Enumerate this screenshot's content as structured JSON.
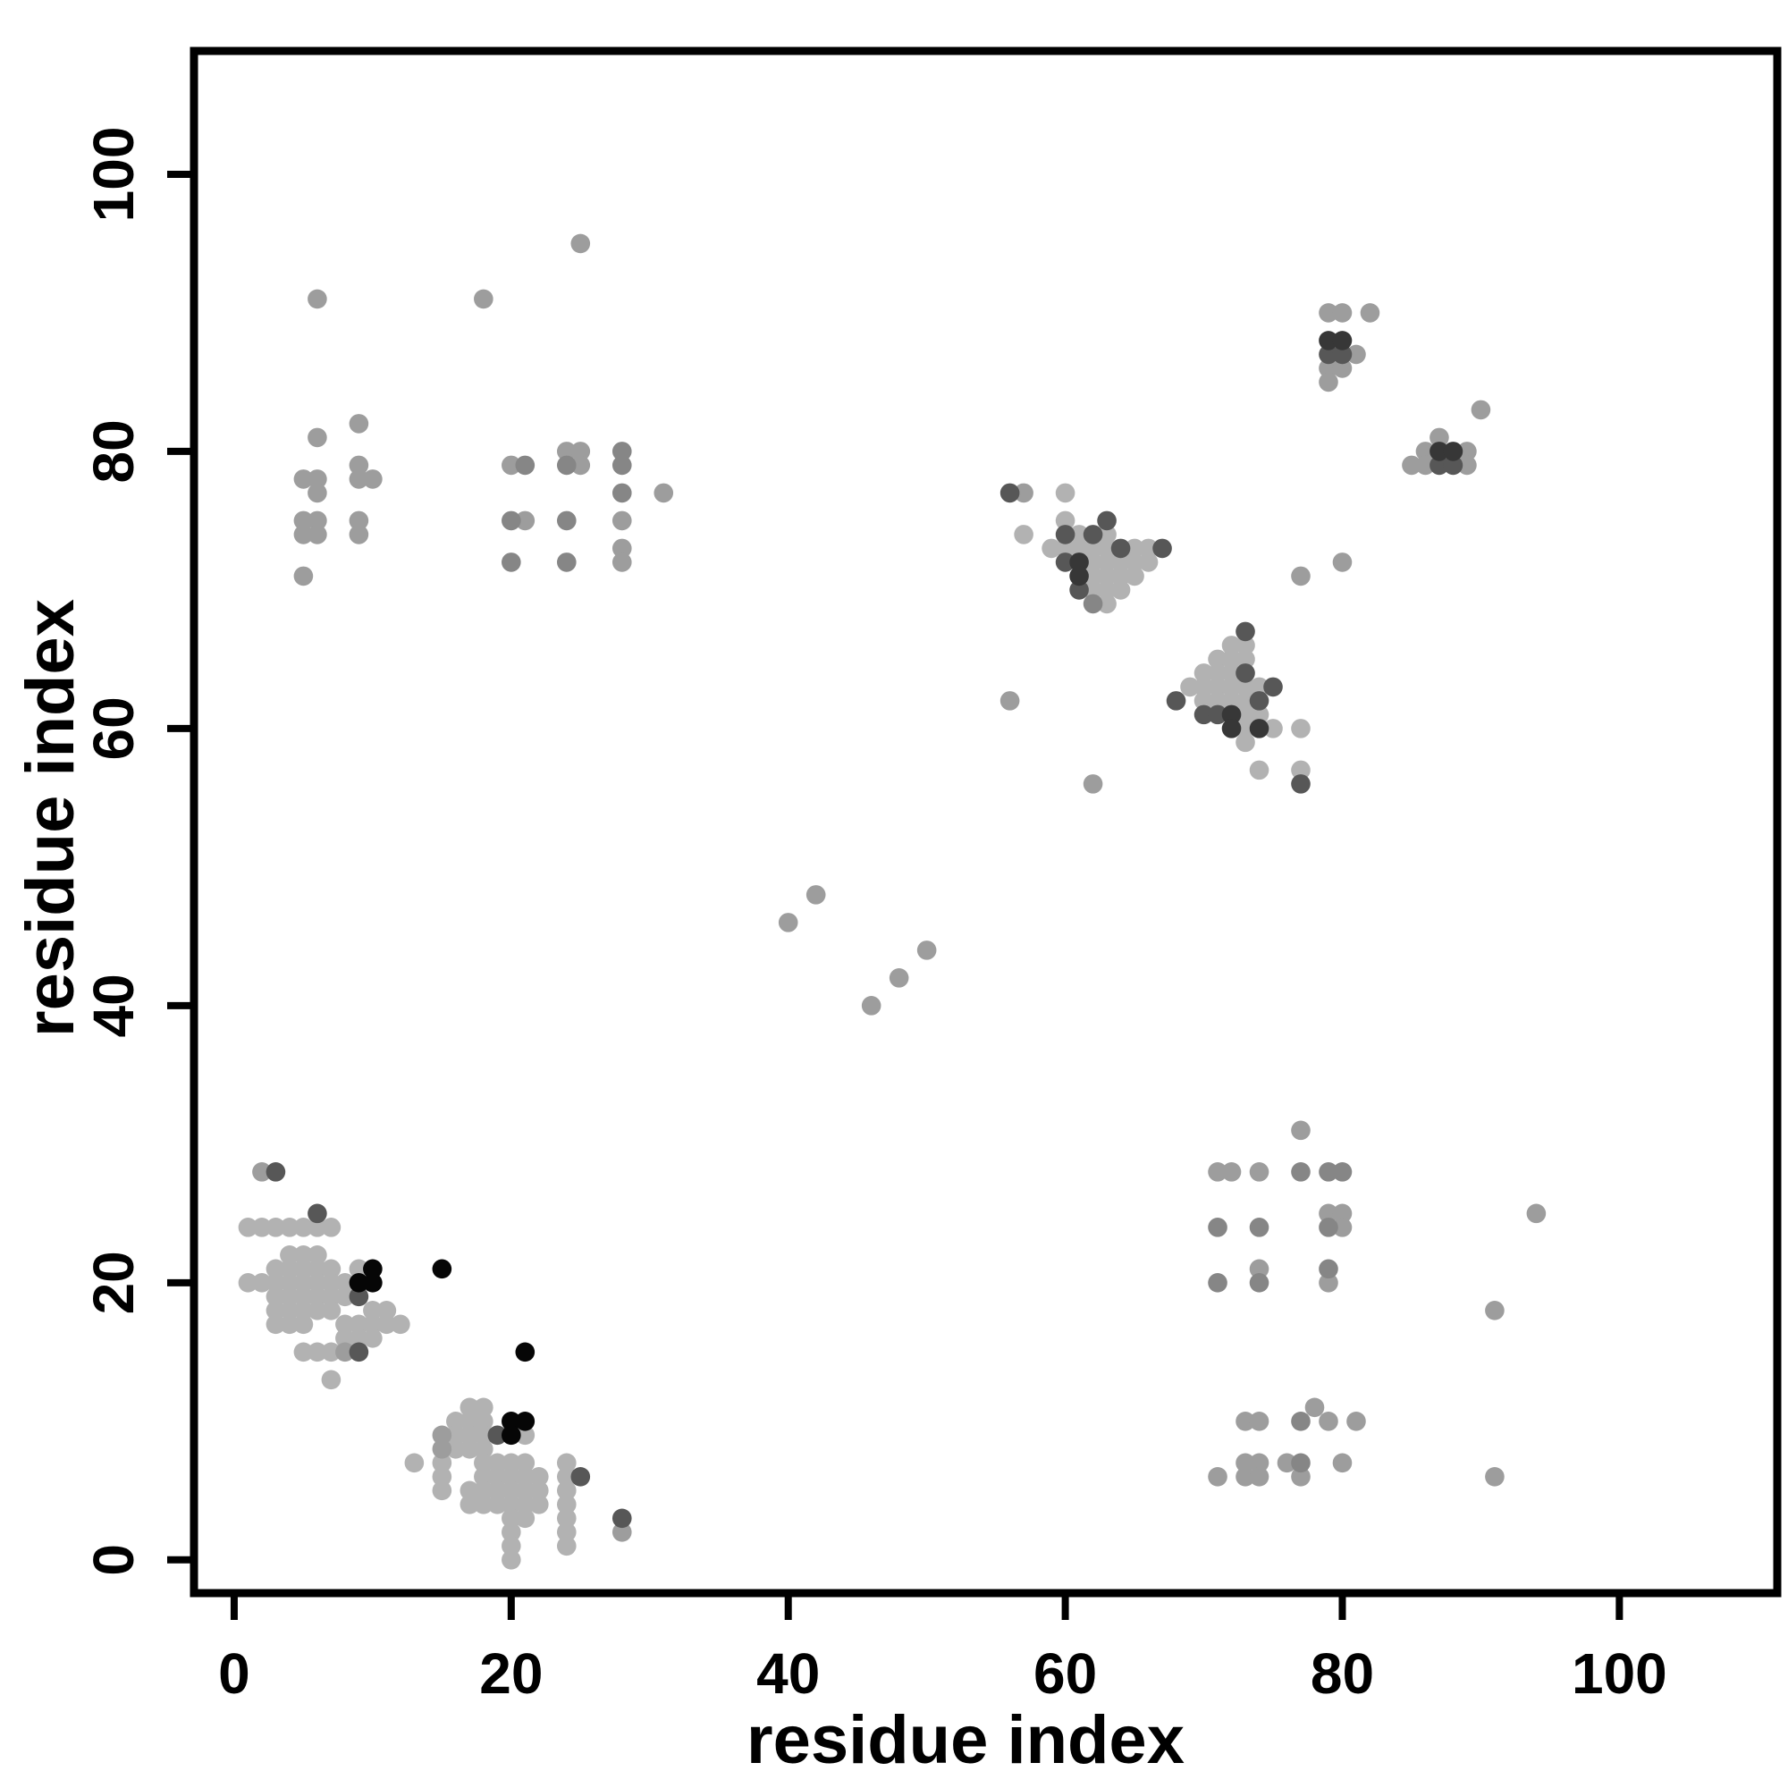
{
  "chart_data": {
    "type": "scatter",
    "title": "",
    "xlabel": "residue index",
    "ylabel": "residue index",
    "xlim": [
      -2.9,
      111.4
    ],
    "ylim": [
      -2.4,
      108.9
    ],
    "xticks": [
      0,
      20,
      40,
      60,
      80,
      100
    ],
    "yticks": [
      0,
      20,
      40,
      60,
      80,
      100
    ],
    "grid": false,
    "legend": "none",
    "marker": "filled-circle",
    "point_color_levels": {
      "L": "#b2b2b2",
      "M": "#9d9d9d",
      "MD": "#868686",
      "D": "#575757",
      "V": "#373737",
      "B": "#060606"
    },
    "points": [
      [
        6,
        91,
        "M"
      ],
      [
        18,
        91,
        "M"
      ],
      [
        25,
        95,
        "M"
      ],
      [
        9,
        82,
        "M"
      ],
      [
        6,
        81,
        "M"
      ],
      [
        9,
        79,
        "M"
      ],
      [
        5,
        78,
        "M"
      ],
      [
        6,
        78,
        "M"
      ],
      [
        9,
        78,
        "M"
      ],
      [
        10,
        78,
        "M"
      ],
      [
        6,
        77,
        "M"
      ],
      [
        5,
        75,
        "M"
      ],
      [
        6,
        75,
        "M"
      ],
      [
        9,
        75,
        "M"
      ],
      [
        5,
        74,
        "M"
      ],
      [
        6,
        74,
        "M"
      ],
      [
        9,
        74,
        "M"
      ],
      [
        5,
        71,
        "M"
      ],
      [
        24,
        80,
        "M"
      ],
      [
        25,
        80,
        "M"
      ],
      [
        28,
        80,
        "MD"
      ],
      [
        20,
        79,
        "M"
      ],
      [
        21,
        79,
        "MD"
      ],
      [
        24,
        79,
        "MD"
      ],
      [
        25,
        79,
        "M"
      ],
      [
        28,
        79,
        "MD"
      ],
      [
        28,
        77,
        "MD"
      ],
      [
        31,
        77,
        "M"
      ],
      [
        20,
        75,
        "MD"
      ],
      [
        21,
        75,
        "M"
      ],
      [
        24,
        75,
        "MD"
      ],
      [
        28,
        75,
        "M"
      ],
      [
        28,
        73,
        "M"
      ],
      [
        20,
        72,
        "MD"
      ],
      [
        24,
        72,
        "MD"
      ],
      [
        28,
        72,
        "M"
      ],
      [
        2,
        28,
        "M"
      ],
      [
        3,
        28,
        "D"
      ],
      [
        6,
        25,
        "D"
      ],
      [
        1,
        24,
        "L"
      ],
      [
        2,
        24,
        "L"
      ],
      [
        3,
        24,
        "L"
      ],
      [
        4,
        24,
        "L"
      ],
      [
        5,
        24,
        "L"
      ],
      [
        6,
        24,
        "L"
      ],
      [
        7,
        24,
        "L"
      ],
      [
        4,
        22,
        "L"
      ],
      [
        5,
        22,
        "L"
      ],
      [
        6,
        22,
        "L"
      ],
      [
        3,
        21,
        "L"
      ],
      [
        4,
        21,
        "L"
      ],
      [
        5,
        21,
        "L"
      ],
      [
        6,
        21,
        "L"
      ],
      [
        7,
        21,
        "L"
      ],
      [
        9,
        21,
        "L"
      ],
      [
        10,
        21,
        "B"
      ],
      [
        15,
        21,
        "B"
      ],
      [
        1,
        20,
        "L"
      ],
      [
        2,
        20,
        "L"
      ],
      [
        3,
        20,
        "L"
      ],
      [
        4,
        20,
        "L"
      ],
      [
        5,
        20,
        "L"
      ],
      [
        6,
        20,
        "L"
      ],
      [
        7,
        20,
        "L"
      ],
      [
        8,
        20,
        "L"
      ],
      [
        9,
        20,
        "B"
      ],
      [
        10,
        20,
        "B"
      ],
      [
        3,
        19,
        "L"
      ],
      [
        4,
        19,
        "L"
      ],
      [
        5,
        19,
        "L"
      ],
      [
        6,
        19,
        "L"
      ],
      [
        7,
        19,
        "L"
      ],
      [
        8,
        19,
        "L"
      ],
      [
        9,
        19,
        "D"
      ],
      [
        3,
        18,
        "L"
      ],
      [
        4,
        18,
        "L"
      ],
      [
        5,
        18,
        "L"
      ],
      [
        6,
        18,
        "L"
      ],
      [
        7,
        18,
        "L"
      ],
      [
        10,
        18,
        "L"
      ],
      [
        11,
        18,
        "L"
      ],
      [
        3,
        17,
        "L"
      ],
      [
        4,
        17,
        "L"
      ],
      [
        5,
        17,
        "L"
      ],
      [
        8,
        17,
        "L"
      ],
      [
        9,
        17,
        "L"
      ],
      [
        10,
        17,
        "L"
      ],
      [
        11,
        17,
        "L"
      ],
      [
        12,
        17,
        "L"
      ],
      [
        8,
        16,
        "L"
      ],
      [
        9,
        16,
        "L"
      ],
      [
        10,
        16,
        "L"
      ],
      [
        5,
        15,
        "L"
      ],
      [
        6,
        15,
        "L"
      ],
      [
        7,
        15,
        "L"
      ],
      [
        8,
        15,
        "M"
      ],
      [
        9,
        15,
        "D"
      ],
      [
        21,
        15,
        "B"
      ],
      [
        7,
        13,
        "L"
      ],
      [
        17,
        11,
        "L"
      ],
      [
        18,
        11,
        "L"
      ],
      [
        16,
        10,
        "L"
      ],
      [
        17,
        10,
        "L"
      ],
      [
        18,
        10,
        "L"
      ],
      [
        20,
        10,
        "B"
      ],
      [
        21,
        10,
        "B"
      ],
      [
        15,
        9,
        "M"
      ],
      [
        16,
        9,
        "L"
      ],
      [
        17,
        9,
        "L"
      ],
      [
        18,
        9,
        "L"
      ],
      [
        19,
        9,
        "D"
      ],
      [
        20,
        9,
        "B"
      ],
      [
        21,
        9,
        "L"
      ],
      [
        15,
        8,
        "M"
      ],
      [
        16,
        8,
        "L"
      ],
      [
        17,
        8,
        "L"
      ],
      [
        18,
        8,
        "L"
      ],
      [
        13,
        7,
        "L"
      ],
      [
        15,
        7,
        "L"
      ],
      [
        18,
        7,
        "L"
      ],
      [
        19,
        7,
        "L"
      ],
      [
        20,
        7,
        "L"
      ],
      [
        21,
        7,
        "L"
      ],
      [
        24,
        7,
        "L"
      ],
      [
        15,
        6,
        "L"
      ],
      [
        18,
        6,
        "L"
      ],
      [
        19,
        6,
        "L"
      ],
      [
        20,
        6,
        "L"
      ],
      [
        21,
        6,
        "L"
      ],
      [
        22,
        6,
        "L"
      ],
      [
        24,
        6,
        "L"
      ],
      [
        25,
        6,
        "D"
      ],
      [
        15,
        5,
        "L"
      ],
      [
        17,
        5,
        "L"
      ],
      [
        18,
        5,
        "L"
      ],
      [
        19,
        5,
        "L"
      ],
      [
        20,
        5,
        "L"
      ],
      [
        21,
        5,
        "L"
      ],
      [
        22,
        5,
        "L"
      ],
      [
        24,
        5,
        "L"
      ],
      [
        17,
        4,
        "L"
      ],
      [
        18,
        4,
        "L"
      ],
      [
        19,
        4,
        "L"
      ],
      [
        20,
        4,
        "L"
      ],
      [
        21,
        4,
        "L"
      ],
      [
        22,
        4,
        "L"
      ],
      [
        24,
        4,
        "L"
      ],
      [
        20,
        3,
        "L"
      ],
      [
        21,
        3,
        "L"
      ],
      [
        24,
        3,
        "L"
      ],
      [
        28,
        3,
        "D"
      ],
      [
        20,
        2,
        "L"
      ],
      [
        24,
        2,
        "L"
      ],
      [
        28,
        2,
        "M"
      ],
      [
        20,
        1,
        "L"
      ],
      [
        24,
        1,
        "L"
      ],
      [
        20,
        0,
        "L"
      ],
      [
        42,
        48,
        "M"
      ],
      [
        40,
        46,
        "M"
      ],
      [
        50,
        44,
        "M"
      ],
      [
        48,
        42,
        "M"
      ],
      [
        46,
        40,
        "M"
      ],
      [
        56,
        62,
        "M"
      ],
      [
        62,
        56,
        "M"
      ],
      [
        56,
        77,
        "D"
      ],
      [
        57,
        77,
        "M"
      ],
      [
        60,
        77,
        "L"
      ],
      [
        60,
        75,
        "L"
      ],
      [
        63,
        75,
        "D"
      ],
      [
        57,
        74,
        "L"
      ],
      [
        60,
        74,
        "D"
      ],
      [
        61,
        74,
        "L"
      ],
      [
        62,
        74,
        "D"
      ],
      [
        63,
        74,
        "L"
      ],
      [
        59,
        73,
        "L"
      ],
      [
        60,
        73,
        "L"
      ],
      [
        61,
        73,
        "L"
      ],
      [
        62,
        73,
        "L"
      ],
      [
        63,
        73,
        "L"
      ],
      [
        64,
        73,
        "D"
      ],
      [
        65,
        73,
        "L"
      ],
      [
        66,
        73,
        "L"
      ],
      [
        67,
        73,
        "D"
      ],
      [
        60,
        72,
        "D"
      ],
      [
        61,
        72,
        "V"
      ],
      [
        62,
        72,
        "L"
      ],
      [
        63,
        72,
        "L"
      ],
      [
        64,
        72,
        "L"
      ],
      [
        65,
        72,
        "L"
      ],
      [
        66,
        72,
        "L"
      ],
      [
        61,
        71,
        "V"
      ],
      [
        62,
        71,
        "L"
      ],
      [
        63,
        71,
        "L"
      ],
      [
        64,
        71,
        "L"
      ],
      [
        65,
        71,
        "L"
      ],
      [
        61,
        70,
        "D"
      ],
      [
        62,
        70,
        "L"
      ],
      [
        63,
        70,
        "L"
      ],
      [
        64,
        70,
        "L"
      ],
      [
        62,
        69,
        "MD"
      ],
      [
        63,
        69,
        "L"
      ],
      [
        77,
        71,
        "M"
      ],
      [
        80,
        72,
        "M"
      ],
      [
        73,
        67,
        "D"
      ],
      [
        72,
        66,
        "L"
      ],
      [
        73,
        66,
        "L"
      ],
      [
        71,
        65,
        "L"
      ],
      [
        72,
        65,
        "L"
      ],
      [
        73,
        65,
        "L"
      ],
      [
        70,
        64,
        "L"
      ],
      [
        71,
        64,
        "L"
      ],
      [
        72,
        64,
        "L"
      ],
      [
        73,
        64,
        "D"
      ],
      [
        69,
        63,
        "L"
      ],
      [
        70,
        63,
        "L"
      ],
      [
        71,
        63,
        "L"
      ],
      [
        72,
        63,
        "L"
      ],
      [
        73,
        63,
        "L"
      ],
      [
        74,
        63,
        "L"
      ],
      [
        75,
        63,
        "D"
      ],
      [
        68,
        62,
        "D"
      ],
      [
        70,
        62,
        "L"
      ],
      [
        71,
        62,
        "L"
      ],
      [
        72,
        62,
        "L"
      ],
      [
        73,
        62,
        "L"
      ],
      [
        74,
        62,
        "D"
      ],
      [
        70,
        61,
        "D"
      ],
      [
        71,
        61,
        "D"
      ],
      [
        72,
        61,
        "V"
      ],
      [
        73,
        61,
        "L"
      ],
      [
        74,
        61,
        "L"
      ],
      [
        72,
        60,
        "V"
      ],
      [
        73,
        60,
        "L"
      ],
      [
        74,
        60,
        "V"
      ],
      [
        75,
        60,
        "L"
      ],
      [
        77,
        60,
        "L"
      ],
      [
        73,
        59,
        "L"
      ],
      [
        74,
        57,
        "L"
      ],
      [
        77,
        57,
        "L"
      ],
      [
        77,
        56,
        "D"
      ],
      [
        79,
        90,
        "M"
      ],
      [
        80,
        90,
        "M"
      ],
      [
        82,
        90,
        "M"
      ],
      [
        79,
        88,
        "V"
      ],
      [
        80,
        88,
        "V"
      ],
      [
        79,
        87,
        "D"
      ],
      [
        80,
        87,
        "D"
      ],
      [
        81,
        87,
        "M"
      ],
      [
        79,
        86,
        "M"
      ],
      [
        80,
        86,
        "M"
      ],
      [
        79,
        85,
        "M"
      ],
      [
        90,
        83,
        "M"
      ],
      [
        87,
        81,
        "M"
      ],
      [
        86,
        80,
        "M"
      ],
      [
        87,
        80,
        "V"
      ],
      [
        88,
        80,
        "V"
      ],
      [
        89,
        80,
        "M"
      ],
      [
        85,
        79,
        "M"
      ],
      [
        86,
        79,
        "M"
      ],
      [
        87,
        79,
        "D"
      ],
      [
        88,
        79,
        "D"
      ],
      [
        89,
        79,
        "M"
      ],
      [
        77,
        31,
        "M"
      ],
      [
        71,
        28,
        "M"
      ],
      [
        72,
        28,
        "M"
      ],
      [
        74,
        28,
        "M"
      ],
      [
        77,
        28,
        "MD"
      ],
      [
        79,
        28,
        "MD"
      ],
      [
        80,
        28,
        "MD"
      ],
      [
        79,
        25,
        "M"
      ],
      [
        80,
        25,
        "M"
      ],
      [
        71,
        24,
        "MD"
      ],
      [
        74,
        24,
        "MD"
      ],
      [
        79,
        24,
        "MD"
      ],
      [
        80,
        24,
        "M"
      ],
      [
        74,
        21,
        "M"
      ],
      [
        79,
        21,
        "MD"
      ],
      [
        71,
        20,
        "MD"
      ],
      [
        74,
        20,
        "MD"
      ],
      [
        79,
        20,
        "M"
      ],
      [
        94,
        25,
        "M"
      ],
      [
        91,
        18,
        "M"
      ],
      [
        78,
        11,
        "M"
      ],
      [
        73,
        10,
        "M"
      ],
      [
        74,
        10,
        "M"
      ],
      [
        77,
        10,
        "MD"
      ],
      [
        79,
        10,
        "M"
      ],
      [
        81,
        10,
        "M"
      ],
      [
        76,
        7,
        "M"
      ],
      [
        77,
        7,
        "MD"
      ],
      [
        80,
        7,
        "M"
      ],
      [
        73,
        7,
        "M"
      ],
      [
        74,
        7,
        "M"
      ],
      [
        71,
        6,
        "M"
      ],
      [
        73,
        6,
        "M"
      ],
      [
        74,
        6,
        "M"
      ],
      [
        77,
        6,
        "M"
      ],
      [
        91,
        6,
        "M"
      ]
    ]
  }
}
